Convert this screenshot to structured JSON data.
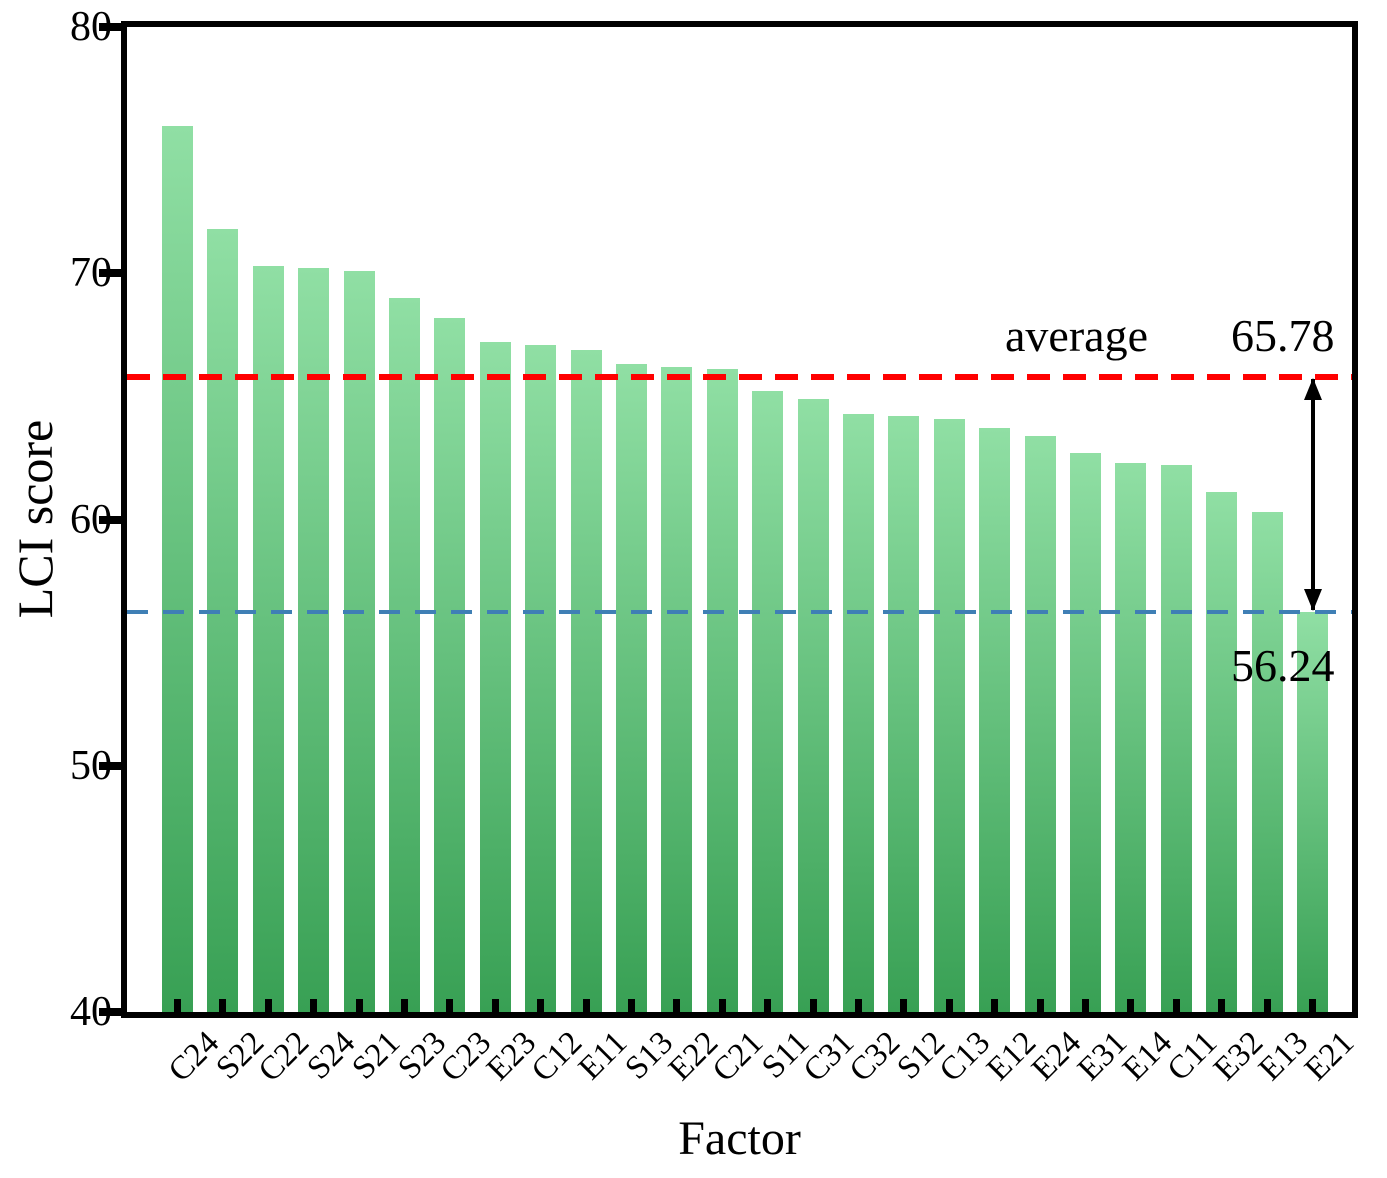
{
  "chart_data": {
    "type": "bar",
    "title": "",
    "xlabel": "Factor",
    "ylabel": "LCI score",
    "ylim": [
      40,
      80
    ],
    "yticks": [
      80,
      70,
      60,
      50,
      40
    ],
    "ytick_labels": [
      "80",
      "70",
      "60",
      "50",
      "40"
    ],
    "grid": false,
    "legend_position": "none",
    "categories": [
      "C24",
      "S22",
      "C22",
      "S24",
      "S21",
      "S23",
      "C23",
      "E23",
      "C12",
      "E11",
      "S13",
      "E22",
      "C21",
      "S11",
      "C31",
      "C32",
      "S12",
      "C13",
      "E12",
      "E24",
      "E31",
      "E14",
      "C11",
      "E32",
      "E13",
      "E21"
    ],
    "values": [
      76.0,
      71.8,
      70.3,
      70.2,
      70.1,
      69.0,
      68.2,
      67.2,
      67.1,
      66.9,
      66.3,
      66.2,
      66.1,
      65.2,
      64.9,
      64.3,
      64.2,
      64.1,
      63.7,
      63.4,
      62.7,
      62.3,
      62.2,
      61.1,
      60.3,
      56.24
    ],
    "average_line": {
      "value": 65.78,
      "label": "average",
      "value_text": "65.78",
      "color": "#ff0000"
    },
    "reference_line": {
      "value": 56.24,
      "value_text": "56.24",
      "color": "#3f7fb5"
    },
    "bar_colors": {
      "top": "#90dfa4",
      "bottom": "#38a054"
    }
  }
}
